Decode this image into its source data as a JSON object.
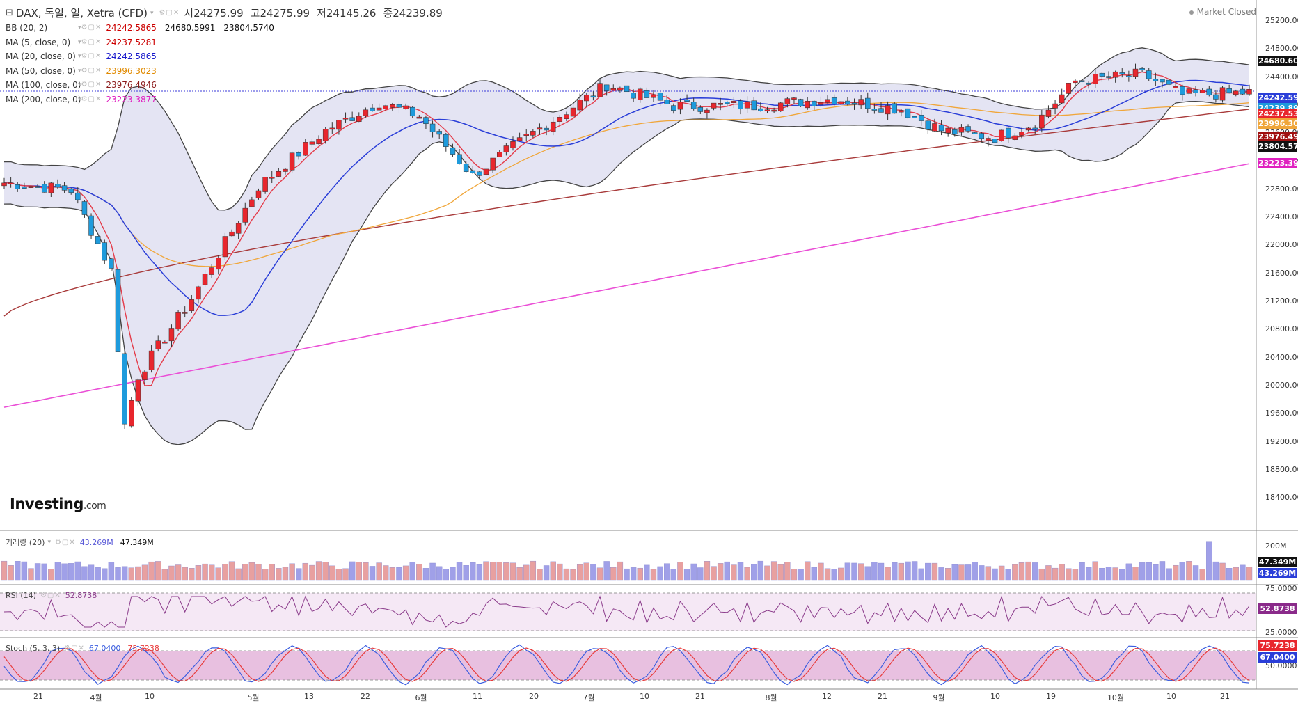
{
  "header": {
    "symbol_label": "DAX, 독일, 일, Xetra (CFD)",
    "open_label": "시",
    "open_value": "24275.99",
    "high_label": "고",
    "high_value": "24275.99",
    "low_label": "저",
    "low_value": "24145.26",
    "close_label": "종",
    "close_value": "24239.89",
    "market_status": "Market Closed"
  },
  "indicators": [
    {
      "label": "BB (20, 2)",
      "values": [
        "24242.5865",
        "24680.5991",
        "23804.5740"
      ],
      "colors": [
        "#cc0000",
        "#111111",
        "#111111"
      ]
    },
    {
      "label": "MA (5, close, 0)",
      "values": [
        "24237.5281"
      ],
      "colors": [
        "#cc0000"
      ]
    },
    {
      "label": "MA (20, close, 0)",
      "values": [
        "24242.5865"
      ],
      "colors": [
        "#1a1acc"
      ]
    },
    {
      "label": "MA (50, close, 0)",
      "values": [
        "23996.3023"
      ],
      "colors": [
        "#e08a00"
      ]
    },
    {
      "label": "MA (100, close, 0)",
      "values": [
        "23976.4946"
      ],
      "colors": [
        "#8b1a1a"
      ]
    },
    {
      "label": "MA (200, close, 0)",
      "values": [
        "23223.3877"
      ],
      "colors": [
        "#e020c0"
      ]
    }
  ],
  "logo": {
    "brand": "Investing",
    "suffix": ".com"
  },
  "volume_panel": {
    "label": "거래량 (20)",
    "value1": "43.269M",
    "value2": "47.349M",
    "axis_label": "200M",
    "tag1": "47.349M",
    "tag2": "43.269M"
  },
  "rsi_panel": {
    "label": "RSI (14)",
    "value": "52.8738",
    "axis_top": "75.0000",
    "axis_bottom": "25.0000",
    "tag": "52.8738"
  },
  "stoch_panel": {
    "label": "Stoch (5, 3, 3)",
    "value1": "67.0400",
    "value2": "75.7238",
    "axis_mid": "50.0000",
    "tag1": "75.7238",
    "tag2": "67.0400"
  },
  "colors": {
    "up": "#e8262d",
    "down": "#1e9bdc",
    "bb_fill": "#e4e4f3",
    "ma5": "#e43c4a",
    "ma20": "#2a3ed8",
    "ma50": "#f0a63a",
    "ma100": "#a83a3a",
    "ma200": "#ea4fd6",
    "rsi": "#8a3a8a",
    "stoch_k": "#3a5de0",
    "stoch_d": "#e83a3a"
  },
  "yaxis_labels": [
    "25200.00",
    "24800.00",
    "24400.00",
    "24000.00",
    "23600.00",
    "23200.00",
    "22800.00",
    "22400.00",
    "22000.00",
    "21600.00",
    "21200.00",
    "20800.00",
    "20400.00",
    "20000.00",
    "19600.00",
    "19200.00",
    "18800.00",
    "18400.00"
  ],
  "price_tags": [
    {
      "text": "24680.60",
      "color": "#111111"
    },
    {
      "text": "24242.59",
      "color": "#2a3ed8"
    },
    {
      "text": "24239.89",
      "color": "#1e9bdc"
    },
    {
      "text": "24237.53",
      "color": "#e8262d"
    },
    {
      "text": "23996.30",
      "color": "#f0a63a"
    },
    {
      "text": "23976.49",
      "color": "#a01010"
    },
    {
      "text": "23804.57",
      "color": "#111111"
    },
    {
      "text": "23223.39",
      "color": "#e020c0"
    }
  ],
  "xaxis_labels": [
    "21",
    "4월",
    "10",
    "5월",
    "13",
    "22",
    "6월",
    "11",
    "20",
    "7월",
    "10",
    "21",
    "8월",
    "12",
    "21",
    "9월",
    "10",
    "19",
    "10월",
    "10",
    "21"
  ]
}
